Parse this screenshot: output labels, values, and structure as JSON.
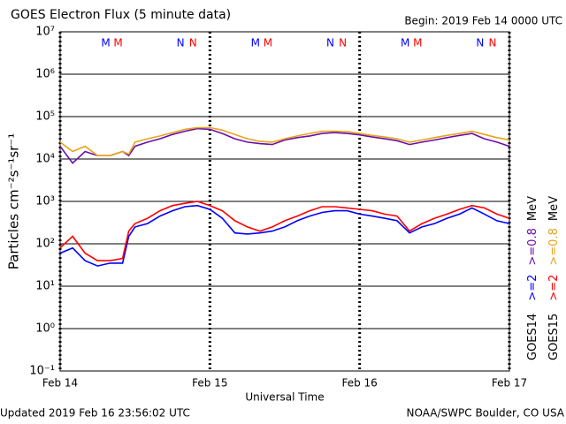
{
  "chart_data": {
    "type": "line",
    "title": "GOES Electron Flux (5 minute data)",
    "subtitle": "Begin: 2019 Feb 14 0000 UTC",
    "footer_left": "Updated 2019 Feb 16 23:56:02 UTC",
    "footer_right": "NOAA/SWPC Boulder, CO USA",
    "xlabel": "Universal Time",
    "ylabel": "Particles cm⁻²s⁻¹sr⁻¹",
    "unit": "MeV",
    "log_y": true,
    "grid": true,
    "threshold": 1000,
    "xlim": [
      0,
      72
    ],
    "xticks": [
      {
        "value": 0,
        "label": "Feb 14"
      },
      {
        "value": 24,
        "label": "Feb 15"
      },
      {
        "value": 48,
        "label": "Feb 16"
      },
      {
        "value": 72,
        "label": "Feb 17"
      }
    ],
    "ylim": [
      0.1,
      10000000
    ],
    "yticks": [
      {
        "value": 0.1,
        "label": "10⁻¹"
      },
      {
        "value": 1,
        "label": "10⁰"
      },
      {
        "value": 10,
        "label": "10¹"
      },
      {
        "value": 100,
        "label": "10²"
      },
      {
        "value": 1000,
        "label": "10³"
      },
      {
        "value": 10000,
        "label": "10⁴"
      },
      {
        "value": 100000,
        "label": "10⁵"
      },
      {
        "value": 1000000,
        "label": "10⁶"
      },
      {
        "value": 10000000,
        "label": "10⁷"
      }
    ],
    "x": [
      0,
      2,
      4,
      6,
      8,
      10,
      11,
      12,
      14,
      16,
      18,
      20,
      22,
      24,
      26,
      28,
      30,
      32,
      34,
      36,
      38,
      40,
      42,
      44,
      46,
      48,
      50,
      52,
      54,
      56,
      58,
      60,
      62,
      64,
      66,
      68,
      70,
      72
    ],
    "series": [
      {
        "name": ">=2",
        "satellite": "GOES14",
        "color": "#0000ff",
        "values": [
          60,
          80,
          40,
          30,
          35,
          35,
          150,
          250,
          300,
          450,
          600,
          750,
          800,
          650,
          400,
          180,
          170,
          180,
          200,
          250,
          350,
          450,
          550,
          600,
          600,
          500,
          450,
          400,
          350,
          180,
          250,
          300,
          400,
          500,
          700,
          500,
          350,
          300
        ]
      },
      {
        "name": ">=2",
        "satellite": "GOES15",
        "color": "#ff0000",
        "values": [
          80,
          150,
          60,
          40,
          40,
          45,
          200,
          300,
          400,
          600,
          800,
          900,
          1000,
          800,
          600,
          350,
          250,
          200,
          250,
          350,
          450,
          600,
          750,
          750,
          700,
          650,
          600,
          500,
          450,
          200,
          300,
          400,
          500,
          650,
          800,
          700,
          500,
          400
        ]
      },
      {
        "name": ">=0.8",
        "satellite": "GOES14",
        "color": "#6a0dad",
        "values": [
          20000,
          8000,
          15000,
          12000,
          12000,
          15000,
          12000,
          20000,
          25000,
          30000,
          38000,
          45000,
          52000,
          50000,
          40000,
          30000,
          25000,
          23000,
          22000,
          28000,
          32000,
          35000,
          40000,
          42000,
          40000,
          37000,
          33000,
          30000,
          27000,
          22000,
          25000,
          28000,
          32000,
          36000,
          40000,
          30000,
          25000,
          20000
        ]
      },
      {
        "name": ">=0.8",
        "satellite": "GOES15",
        "color": "#e8a317",
        "values": [
          25000,
          15000,
          20000,
          12000,
          12000,
          15000,
          13000,
          25000,
          30000,
          35000,
          42000,
          50000,
          55000,
          55000,
          48000,
          38000,
          30000,
          26000,
          25000,
          30000,
          35000,
          40000,
          45000,
          45000,
          44000,
          40000,
          36000,
          33000,
          30000,
          25000,
          28000,
          32000,
          36000,
          40000,
          45000,
          38000,
          32000,
          28000
        ]
      }
    ],
    "annotations": [
      {
        "text": "M",
        "x": 7.3,
        "color": "#0000ff"
      },
      {
        "text": "M",
        "x": 9.3,
        "color": "#ff0000"
      },
      {
        "text": "N",
        "x": 19.3,
        "color": "#0000ff"
      },
      {
        "text": "N",
        "x": 21.3,
        "color": "#ff0000"
      },
      {
        "text": "M",
        "x": 31.3,
        "color": "#0000ff"
      },
      {
        "text": "M",
        "x": 33.3,
        "color": "#ff0000"
      },
      {
        "text": "N",
        "x": 43.3,
        "color": "#0000ff"
      },
      {
        "text": "N",
        "x": 45.3,
        "color": "#ff0000"
      },
      {
        "text": "M",
        "x": 55.3,
        "color": "#0000ff"
      },
      {
        "text": "M",
        "x": 57.3,
        "color": "#ff0000"
      },
      {
        "text": "N",
        "x": 67.3,
        "color": "#0000ff"
      },
      {
        "text": "N",
        "x": 69.3,
        "color": "#ff0000"
      }
    ]
  }
}
